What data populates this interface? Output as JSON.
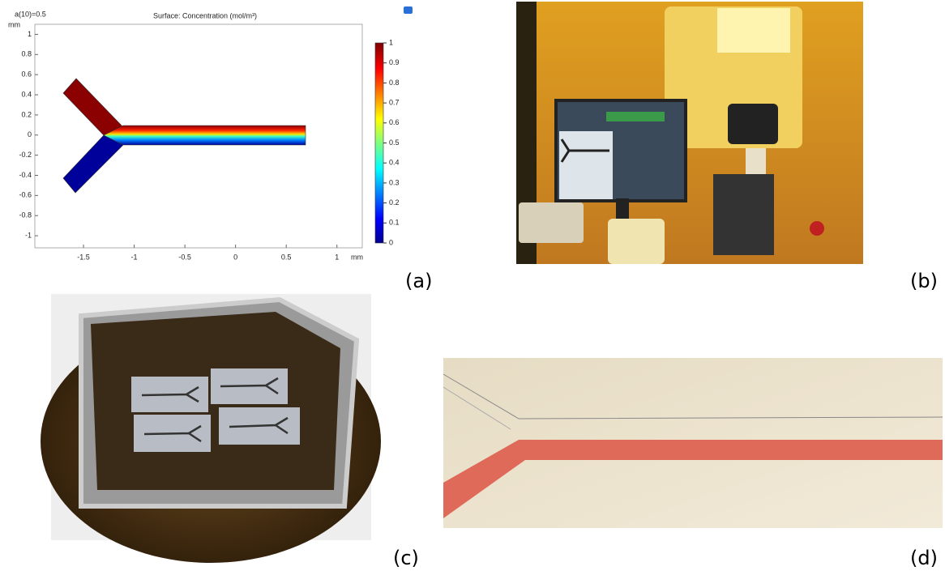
{
  "panels": [
    {
      "label": "(a)",
      "plot": {
        "parameter": "a(10)=0.5",
        "title": "Surface: Concentration (mol/m³)",
        "x_unit": "mm",
        "y_unit": "mm",
        "xlim": [
          -1.98,
          1.25
        ],
        "xticks": [
          -1.5,
          -1,
          -0.5,
          0,
          0.5,
          1
        ],
        "ylim": [
          -1.12,
          1.1
        ],
        "yticks": [
          1,
          0.8,
          0.6,
          0.4,
          0.2,
          0,
          -0.2,
          -0.4,
          -0.6,
          -0.8,
          -1
        ],
        "colorbar_lim": [
          0,
          1
        ],
        "colorbar_ticks": [
          1,
          0.9,
          0.8,
          0.7,
          0.6,
          0.5,
          0.4,
          0.3,
          0.2,
          0.1,
          0
        ]
      }
    },
    {
      "label": "(b)"
    },
    {
      "label": "(c)"
    },
    {
      "label": "(d)"
    }
  ]
}
